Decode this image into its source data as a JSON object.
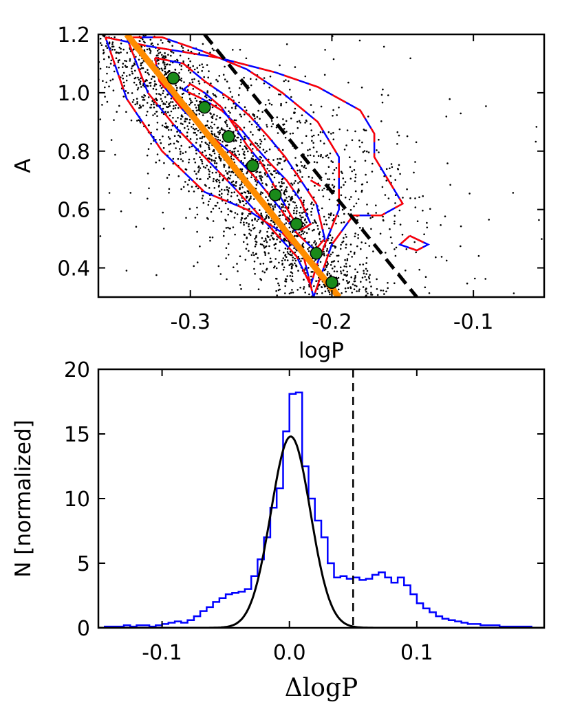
{
  "chart_data": [
    {
      "type": "scatter",
      "title": "",
      "xlabel": "logP",
      "ylabel": "A",
      "xlim": [
        -0.365,
        -0.05
      ],
      "ylim": [
        0.3,
        1.2
      ],
      "xticks": [
        -0.3,
        -0.2,
        -0.1
      ],
      "xtick_labels": [
        "-0.3",
        "-0.2",
        "-0.1"
      ],
      "yticks": [
        0.4,
        0.6,
        0.8,
        1.0,
        1.2
      ],
      "ytick_labels": [
        "0.4",
        "0.6",
        "0.8",
        "1.0",
        "1.2"
      ],
      "colors": {
        "points": "#000000",
        "contour_a": "#ff0000",
        "contour_b": "#0000ff",
        "fit_line": "#ff8c00",
        "markers": "#1a8a1a",
        "dashed": "#000000"
      },
      "scatter_cloud": {
        "n_points": 2600,
        "description": "field stars",
        "center": [
          -0.245,
          0.7
        ]
      },
      "fit_line": {
        "x": [
          -0.345,
          -0.195
        ],
        "y": [
          1.2,
          0.3
        ]
      },
      "dashed_line": {
        "x": [
          -0.29,
          -0.14
        ],
        "y": [
          1.2,
          0.3
        ]
      },
      "binned_points": {
        "x": [
          -0.312,
          -0.29,
          -0.273,
          -0.256,
          -0.24,
          -0.225,
          -0.211,
          -0.2
        ],
        "y": [
          1.05,
          0.95,
          0.85,
          0.75,
          0.65,
          0.55,
          0.45,
          0.35
        ]
      },
      "contours": [
        {
          "x": [
            -0.3,
            -0.29,
            -0.278,
            -0.268,
            -0.26,
            -0.25,
            -0.243,
            -0.236,
            -0.229,
            -0.222,
            -0.215,
            -0.222,
            -0.232,
            -0.244,
            -0.255,
            -0.265,
            -0.278,
            -0.292,
            -0.305,
            -0.3
          ],
          "y": [
            1.03,
            1.0,
            0.95,
            0.88,
            0.82,
            0.76,
            0.7,
            0.64,
            0.58,
            0.53,
            0.55,
            0.63,
            0.7,
            0.76,
            0.82,
            0.88,
            0.94,
            0.98,
            1.01,
            1.03
          ]
        },
        {
          "x": [
            -0.325,
            -0.305,
            -0.29,
            -0.272,
            -0.258,
            -0.245,
            -0.233,
            -0.222,
            -0.211,
            -0.205,
            -0.212,
            -0.225,
            -0.236,
            -0.246,
            -0.256,
            -0.268,
            -0.285,
            -0.305,
            -0.322,
            -0.325
          ],
          "y": [
            1.12,
            1.1,
            1.04,
            0.98,
            0.92,
            0.85,
            0.78,
            0.7,
            0.62,
            0.5,
            0.46,
            0.52,
            0.6,
            0.66,
            0.72,
            0.78,
            0.85,
            0.94,
            1.04,
            1.12
          ]
        },
        {
          "x": [
            -0.345,
            -0.32,
            -0.29,
            -0.26,
            -0.235,
            -0.21,
            -0.195,
            -0.195,
            -0.21,
            -0.215,
            -0.225,
            -0.24,
            -0.255,
            -0.27,
            -0.29,
            -0.31,
            -0.33,
            -0.345
          ],
          "y": [
            1.19,
            1.19,
            1.14,
            1.08,
            1.0,
            0.9,
            0.78,
            0.6,
            0.42,
            0.34,
            0.44,
            0.52,
            0.6,
            0.68,
            0.78,
            0.88,
            1.0,
            1.19
          ]
        },
        {
          "x": [
            -0.36,
            -0.33,
            -0.28,
            -0.24,
            -0.21,
            -0.18,
            -0.17,
            -0.17,
            -0.15,
            -0.165,
            -0.185,
            -0.2,
            -0.213,
            -0.22,
            -0.235,
            -0.26,
            -0.29,
            -0.32,
            -0.345,
            -0.36
          ],
          "y": [
            1.19,
            1.16,
            1.12,
            1.07,
            1.02,
            0.94,
            0.86,
            0.78,
            0.62,
            0.58,
            0.58,
            0.48,
            0.3,
            0.44,
            0.52,
            0.6,
            0.66,
            0.8,
            0.98,
            1.19
          ]
        },
        {
          "x": [
            -0.215,
            -0.208,
            -0.215
          ],
          "y": [
            0.7,
            0.68,
            0.7
          ]
        },
        {
          "x": [
            -0.145,
            -0.132,
            -0.14,
            -0.152,
            -0.145
          ],
          "y": [
            0.51,
            0.48,
            0.46,
            0.48,
            0.51
          ]
        }
      ]
    },
    {
      "type": "step_histogram",
      "title": "",
      "xlabel": "ΔlogP",
      "ylabel": "N [normalized]",
      "xlim": [
        -0.15,
        0.2
      ],
      "ylim": [
        0,
        20
      ],
      "xticks": [
        -0.1,
        0.0,
        0.1
      ],
      "xtick_labels": [
        "-0.1",
        "0.0",
        "0.1"
      ],
      "yticks": [
        0,
        5,
        10,
        15,
        20
      ],
      "ytick_labels": [
        "0",
        "5",
        "10",
        "15",
        "20"
      ],
      "colors": {
        "histogram": "#0000ff",
        "gaussian": "#000000",
        "dashed": "#000000"
      },
      "histogram": {
        "bin_edges_start": -0.15,
        "bin_width": 0.005,
        "counts": [
          0,
          0.1,
          0.1,
          0.1,
          0.2,
          0.1,
          0.2,
          0.2,
          0.1,
          0.2,
          0.3,
          0.4,
          0.5,
          0.4,
          0.6,
          0.9,
          1.3,
          1.6,
          2.0,
          2.3,
          2.6,
          2.7,
          2.8,
          3.0,
          4.0,
          5.3,
          7.0,
          9.3,
          10.8,
          15.2,
          18.1,
          18.2,
          12.5,
          10.0,
          8.3,
          7.0,
          5.0,
          3.9,
          4.0,
          3.8,
          3.9,
          3.7,
          3.8,
          4.1,
          4.3,
          3.9,
          3.5,
          3.9,
          3.3,
          2.6,
          1.9,
          1.5,
          1.2,
          0.9,
          0.7,
          0.6,
          0.5,
          0.4,
          0.3,
          0.3,
          0.2,
          0.2,
          0.2,
          0.1,
          0.1,
          0.1,
          0.1,
          0.1,
          0.0,
          0.0
        ]
      },
      "gaussian_fit": {
        "mu": 0.001,
        "sigma": 0.0155,
        "amplitude": 14.8
      },
      "dashed_vline_x": 0.05
    }
  ]
}
